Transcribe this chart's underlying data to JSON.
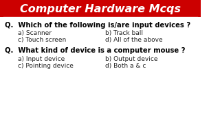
{
  "title": "Computer Hardware Mcqs",
  "title_bg": "#CC0000",
  "title_color": "#FFFFFF",
  "bg_color": "#FFFFFF",
  "q1": "Q.  Which of the following is/are input devices ?",
  "q1_opts": [
    [
      "a) Scanner",
      "b) Track ball"
    ],
    [
      "c) Touch screen",
      "d) All of the above"
    ]
  ],
  "q2": "Q.  What kind of device is a computer mouse ?",
  "q2_opts": [
    [
      "a) Input device",
      "b) Output device"
    ],
    [
      "c) Pointing device",
      "d) Both a & c"
    ]
  ],
  "q_color": "#000000",
  "opt_color": "#222222"
}
